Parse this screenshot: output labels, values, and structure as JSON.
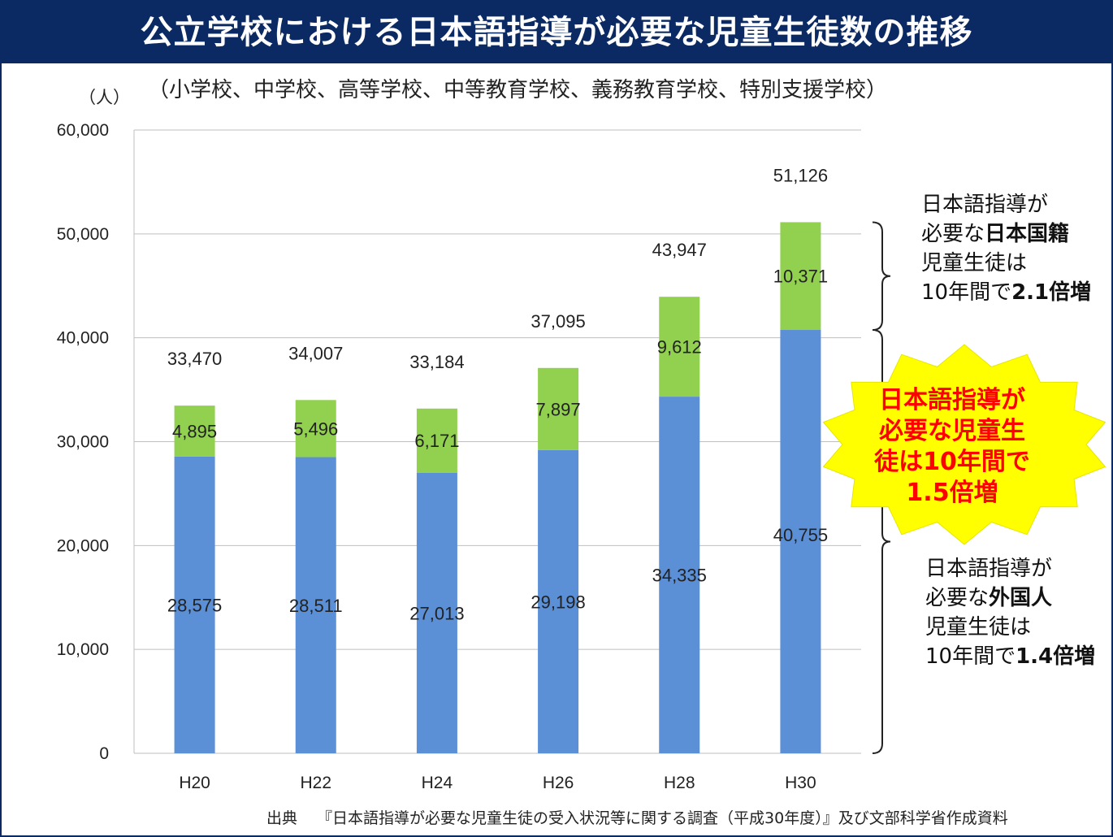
{
  "title": "公立学校における日本語指導が必要な児童生徒数の推移",
  "subtitle": "（小学校、中学校、高等学校、中等教育学校、義務教育学校、特別支援学校）",
  "source": {
    "label": "出典",
    "text": "『日本語指導が必要な児童生徒の受入状況等に関する調査（平成30年度）』及び文部科学省作成資料"
  },
  "colors": {
    "title_bg": "#0b2a63",
    "foreign": "#5b8fd6",
    "japanese": "#92d050",
    "star_fill": "#ffff00",
    "star_text": "#ff0000"
  },
  "chart_data": {
    "type": "bar",
    "stacked": true,
    "ylabel": "（人）",
    "ylim": [
      0,
      60000
    ],
    "yticks": [
      0,
      10000,
      20000,
      30000,
      40000,
      50000,
      60000
    ],
    "ytick_labels": [
      "0",
      "10,000",
      "20,000",
      "30,000",
      "40,000",
      "50,000",
      "60,000"
    ],
    "grid": true,
    "categories": [
      "H20",
      "H22",
      "H24",
      "H26",
      "H28",
      "H30"
    ],
    "series": [
      {
        "values": [
          28575,
          28511,
          27013,
          29198,
          34335,
          40755
        ],
        "labels": [
          "28,575",
          "28,511",
          "27,013",
          "29,198",
          "34,335",
          "40,755"
        ],
        "color": "#5b8fd6"
      },
      {
        "values": [
          4895,
          5496,
          6171,
          7897,
          9612,
          10371
        ],
        "labels": [
          "4,895",
          "5,496",
          "6,171",
          "7,897",
          "9,612",
          "10,371"
        ],
        "color": "#92d050"
      }
    ],
    "totals": [
      33470,
      34007,
      33184,
      37095,
      43947,
      51126
    ],
    "total_labels": [
      "33,470",
      "34,007",
      "33,184",
      "37,095",
      "43,947",
      "51,126"
    ]
  },
  "annotations": {
    "japanese_note": {
      "line1": "日本語指導が",
      "line2_pre": "必要な",
      "line2_bold": "日本国籍",
      "line3": "児童生徒は",
      "line4_pre": "10年間で",
      "line4_bold": "2.1倍増"
    },
    "foreign_note": {
      "line1": "日本語指導が",
      "line2_pre": "必要な",
      "line2_bold": "外国人",
      "line3": "児童生徒は",
      "line4_pre": "10年間で",
      "line4_bold": "1.4倍増"
    },
    "star": {
      "line1": "日本語指導が",
      "line2": "必要な児童生",
      "line3": "徒は10年間で",
      "line4": "1.5倍増"
    }
  }
}
